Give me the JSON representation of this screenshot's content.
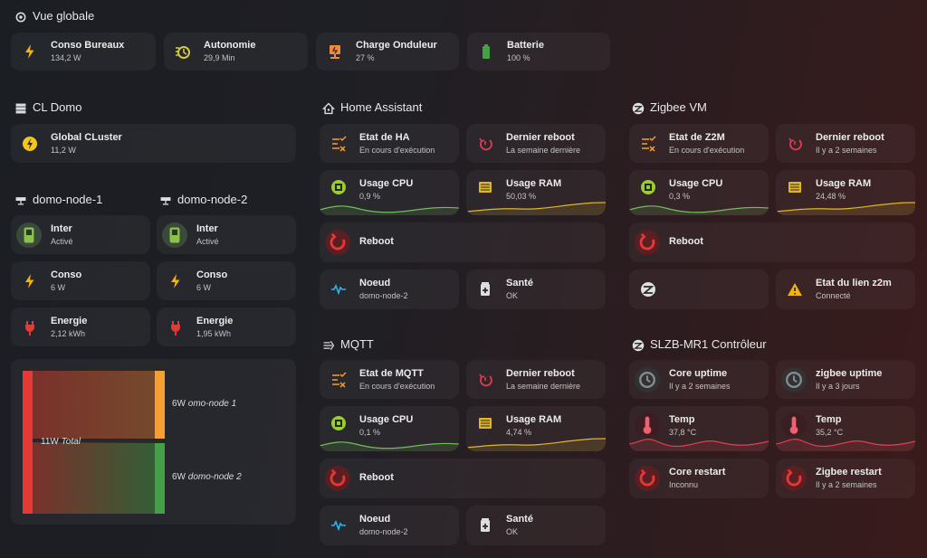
{
  "overview": {
    "title": "Vue globale",
    "cards": [
      {
        "name": "Conso Bureaux",
        "state": "134,2 W"
      },
      {
        "name": "Autonomie",
        "state": "29,9 Min"
      },
      {
        "name": "Charge Onduleur",
        "state": "27 %"
      },
      {
        "name": "Batterie",
        "state": "100 %"
      }
    ]
  },
  "cluster": {
    "title": "CL Domo",
    "cards": [
      {
        "name": "Global CLuster",
        "state": "11,2 W"
      }
    ]
  },
  "nodes": [
    {
      "title": "domo-node-1",
      "cards": [
        {
          "name": "Inter",
          "state": "Activé"
        },
        {
          "name": "Conso",
          "state": "6 W"
        },
        {
          "name": "Energie",
          "state": "2,12 kWh"
        }
      ]
    },
    {
      "title": "domo-node-2",
      "cards": [
        {
          "name": "Inter",
          "state": "Activé"
        },
        {
          "name": "Conso",
          "state": "6 W"
        },
        {
          "name": "Energie",
          "state": "1,95 kWh"
        }
      ]
    }
  ],
  "sankey": {
    "total": {
      "value": "11W",
      "label": "Total"
    },
    "targets": [
      {
        "value": "6W",
        "label": "omo-node 1"
      },
      {
        "value": "6W",
        "label": "domo-node 2"
      }
    ]
  },
  "sections": [
    {
      "title": "Home Assistant",
      "cards": [
        {
          "name": "Etat de HA",
          "state": "En cours d'exécution"
        },
        {
          "name": "Dernier reboot",
          "state": "La semaine dernière"
        },
        {
          "name": "Usage CPU",
          "state": "0,9 %"
        },
        {
          "name": "Usage RAM",
          "state": "50,03 %"
        },
        {
          "name": "Reboot"
        },
        {
          "name": "Noeud",
          "state": "domo-node-2"
        },
        {
          "name": "Santé",
          "state": "OK"
        }
      ]
    },
    {
      "title": "Zigbee VM",
      "cards": [
        {
          "name": "Etat de Z2M",
          "state": "En cours d'exécution"
        },
        {
          "name": "Dernier reboot",
          "state": "Il y a 2 semaines"
        },
        {
          "name": "Usage CPU",
          "state": "0,3 %"
        },
        {
          "name": "Usage RAM",
          "state": "24,48 %"
        },
        {
          "name": "Reboot"
        },
        {
          "name": "Etat du lien z2m",
          "state": "Connecté"
        }
      ]
    },
    {
      "title": "MQTT",
      "cards": [
        {
          "name": "Etat de MQTT",
          "state": "En cours d'exécution"
        },
        {
          "name": "Dernier reboot",
          "state": "La semaine dernière"
        },
        {
          "name": "Usage CPU",
          "state": "0,1 %"
        },
        {
          "name": "Usage RAM",
          "state": "4,74 %"
        },
        {
          "name": "Reboot"
        },
        {
          "name": "Noeud",
          "state": "domo-node-2"
        },
        {
          "name": "Santé",
          "state": "OK"
        }
      ]
    },
    {
      "title": "SLZB-MR1 Contrôleur",
      "cards": [
        {
          "name": "Core uptime",
          "state": "Il y a 2 semaines"
        },
        {
          "name": "zigbee uptime",
          "state": "Il y a 3 jours"
        },
        {
          "name": "Temp",
          "state": "37,8 °C"
        },
        {
          "name": "Temp",
          "state": "35,2 °C"
        },
        {
          "name": "Core restart",
          "state": "Inconnu"
        },
        {
          "name": "Zigbee restart",
          "state": "Il y a 2 semaines"
        }
      ]
    }
  ]
}
